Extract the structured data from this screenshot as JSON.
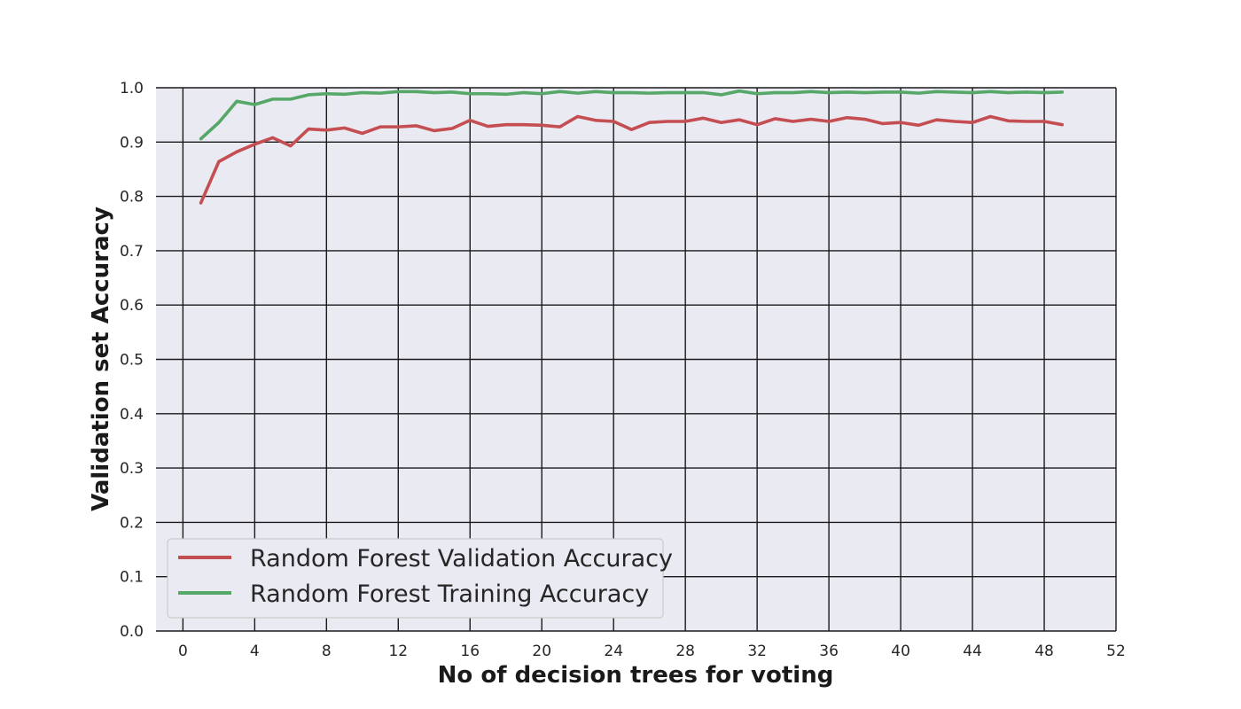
{
  "chart_data": {
    "type": "line",
    "title": "",
    "xlabel": "No of decision trees for voting",
    "ylabel": "Validation set Accuracy",
    "xlim": [
      -1.5,
      52
    ],
    "ylim": [
      0.0,
      1.0
    ],
    "xticks": [
      0,
      4,
      8,
      12,
      16,
      20,
      24,
      28,
      32,
      36,
      40,
      44,
      48,
      52
    ],
    "yticks": [
      0.0,
      0.1,
      0.2,
      0.3,
      0.4,
      0.5,
      0.6,
      0.7,
      0.8,
      0.9,
      1.0
    ],
    "grid": true,
    "legend_position": "lower-left",
    "background": "#eaeaf2",
    "x": [
      1,
      2,
      3,
      4,
      5,
      6,
      7,
      8,
      9,
      10,
      11,
      12,
      13,
      14,
      15,
      16,
      17,
      18,
      19,
      20,
      21,
      22,
      23,
      24,
      25,
      26,
      27,
      28,
      29,
      30,
      31,
      32,
      33,
      34,
      35,
      36,
      37,
      38,
      39,
      40,
      41,
      42,
      43,
      44,
      45,
      46,
      47,
      48,
      49
    ],
    "series": [
      {
        "name": "Random Forest Validation Accuracy",
        "color": "#c44e52",
        "values": [
          0.788,
          0.864,
          0.882,
          0.896,
          0.908,
          0.893,
          0.924,
          0.922,
          0.926,
          0.916,
          0.928,
          0.928,
          0.93,
          0.921,
          0.925,
          0.94,
          0.929,
          0.932,
          0.932,
          0.931,
          0.928,
          0.947,
          0.94,
          0.938,
          0.923,
          0.936,
          0.938,
          0.938,
          0.944,
          0.936,
          0.941,
          0.932,
          0.943,
          0.938,
          0.942,
          0.938,
          0.945,
          0.942,
          0.934,
          0.936,
          0.931,
          0.941,
          0.938,
          0.936,
          0.947,
          0.939,
          0.938,
          0.938,
          0.932
        ]
      },
      {
        "name": "Random Forest Training Accuracy",
        "color": "#55a868",
        "values": [
          0.906,
          0.936,
          0.975,
          0.969,
          0.979,
          0.979,
          0.987,
          0.989,
          0.988,
          0.991,
          0.99,
          0.993,
          0.993,
          0.991,
          0.992,
          0.989,
          0.989,
          0.988,
          0.991,
          0.989,
          0.993,
          0.99,
          0.993,
          0.991,
          0.991,
          0.99,
          0.991,
          0.991,
          0.991,
          0.987,
          0.994,
          0.989,
          0.991,
          0.991,
          0.993,
          0.991,
          0.992,
          0.991,
          0.992,
          0.992,
          0.99,
          0.993,
          0.992,
          0.991,
          0.993,
          0.991,
          0.992,
          0.991,
          0.992
        ]
      }
    ]
  }
}
